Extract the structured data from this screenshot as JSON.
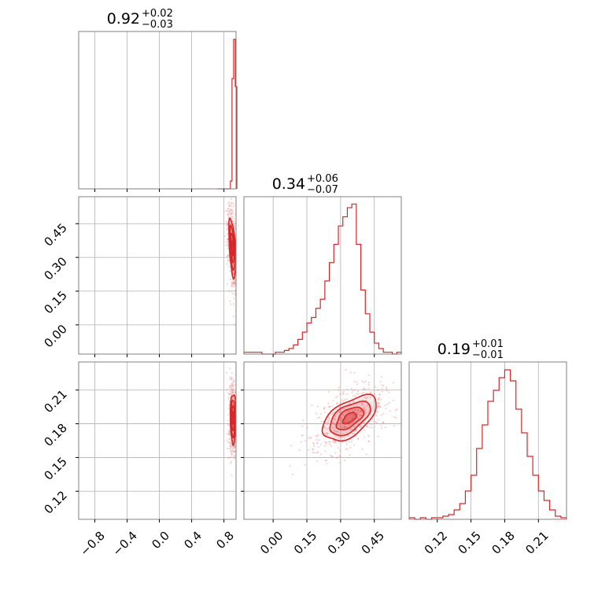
{
  "colors": {
    "line": "#d62728",
    "fill": "#f08080",
    "grid": "#b0b0b0",
    "axis": "#808080"
  },
  "chart_data": {
    "type": "corner",
    "grid": true,
    "titles": [
      {
        "median": "0.92",
        "plus": "+0.02",
        "minus": "−0.03"
      },
      {
        "median": "0.34",
        "plus": "+0.06",
        "minus": "−0.07"
      },
      {
        "median": "0.19",
        "plus": "+0.01",
        "minus": "−0.01"
      }
    ],
    "params": [
      {
        "range": [
          -1.0,
          0.95
        ],
        "ticks": [
          -0.8,
          -0.4,
          0.0,
          0.4,
          0.8
        ],
        "tick_labels": [
          "−0.8",
          "−0.4",
          "0.0",
          "0.4",
          "0.8"
        ]
      },
      {
        "range": [
          -0.13,
          0.57
        ],
        "ticks": [
          0.0,
          0.15,
          0.3,
          0.45
        ],
        "tick_labels": [
          "0.00",
          "0.15",
          "0.30",
          "0.45"
        ]
      },
      {
        "range": [
          0.095,
          0.235
        ],
        "ticks": [
          0.12,
          0.15,
          0.18,
          0.21
        ],
        "tick_labels": [
          "0.12",
          "0.15",
          "0.18",
          "0.21"
        ]
      }
    ],
    "histograms": [
      {
        "param": 0,
        "edges": [
          0.72,
          0.74,
          0.76,
          0.78,
          0.8,
          0.82,
          0.84,
          0.86,
          0.88,
          0.9,
          0.92,
          0.94,
          0.96
        ],
        "counts": [
          0,
          0,
          0,
          0,
          0,
          0,
          0,
          0,
          1,
          14,
          19,
          13
        ],
        "ymax": 20
      },
      {
        "param": 1,
        "edges": [
          -0.13,
          -0.11,
          -0.09,
          -0.07,
          -0.05,
          -0.03,
          -0.01,
          0.01,
          0.03,
          0.05,
          0.07,
          0.09,
          0.11,
          0.13,
          0.15,
          0.17,
          0.19,
          0.21,
          0.23,
          0.25,
          0.27,
          0.29,
          0.31,
          0.33,
          0.35,
          0.37,
          0.39,
          0.41,
          0.43,
          0.45,
          0.47,
          0.49,
          0.51,
          0.53,
          0.55,
          0.57
        ],
        "counts": [
          1,
          1,
          1,
          1,
          0,
          0,
          0,
          1,
          1,
          2,
          3,
          5,
          8,
          12,
          17,
          20,
          25,
          30,
          40,
          50,
          60,
          70,
          75,
          80,
          82,
          60,
          35,
          22,
          12,
          6,
          3,
          1,
          1,
          0,
          1
        ],
        "ymax": 86
      },
      {
        "param": 2,
        "edges": [
          0.095,
          0.1,
          0.105,
          0.11,
          0.115,
          0.12,
          0.125,
          0.13,
          0.135,
          0.14,
          0.145,
          0.15,
          0.155,
          0.16,
          0.165,
          0.17,
          0.175,
          0.18,
          0.185,
          0.19,
          0.195,
          0.2,
          0.205,
          0.21,
          0.215,
          0.22,
          0.225,
          0.23,
          0.235
        ],
        "counts": [
          1,
          0,
          1,
          0,
          1,
          1,
          2,
          3,
          6,
          10,
          18,
          28,
          45,
          60,
          75,
          82,
          90,
          95,
          88,
          70,
          55,
          40,
          28,
          18,
          12,
          6,
          2,
          1
        ],
        "ymax": 100
      }
    ],
    "pairs": [
      {
        "x_param": 0,
        "y_param": 1,
        "center": [
          0.905,
          0.34
        ],
        "sigma": [
          0.022,
          0.065
        ],
        "rho": -0.5
      },
      {
        "x_param": 0,
        "y_param": 2,
        "center": [
          0.915,
          0.185
        ],
        "sigma": [
          0.018,
          0.011
        ],
        "rho": 0.0
      },
      {
        "x_param": 1,
        "y_param": 2,
        "center": [
          0.34,
          0.185
        ],
        "sigma": [
          0.06,
          0.01
        ],
        "rho": 0.55
      }
    ]
  }
}
